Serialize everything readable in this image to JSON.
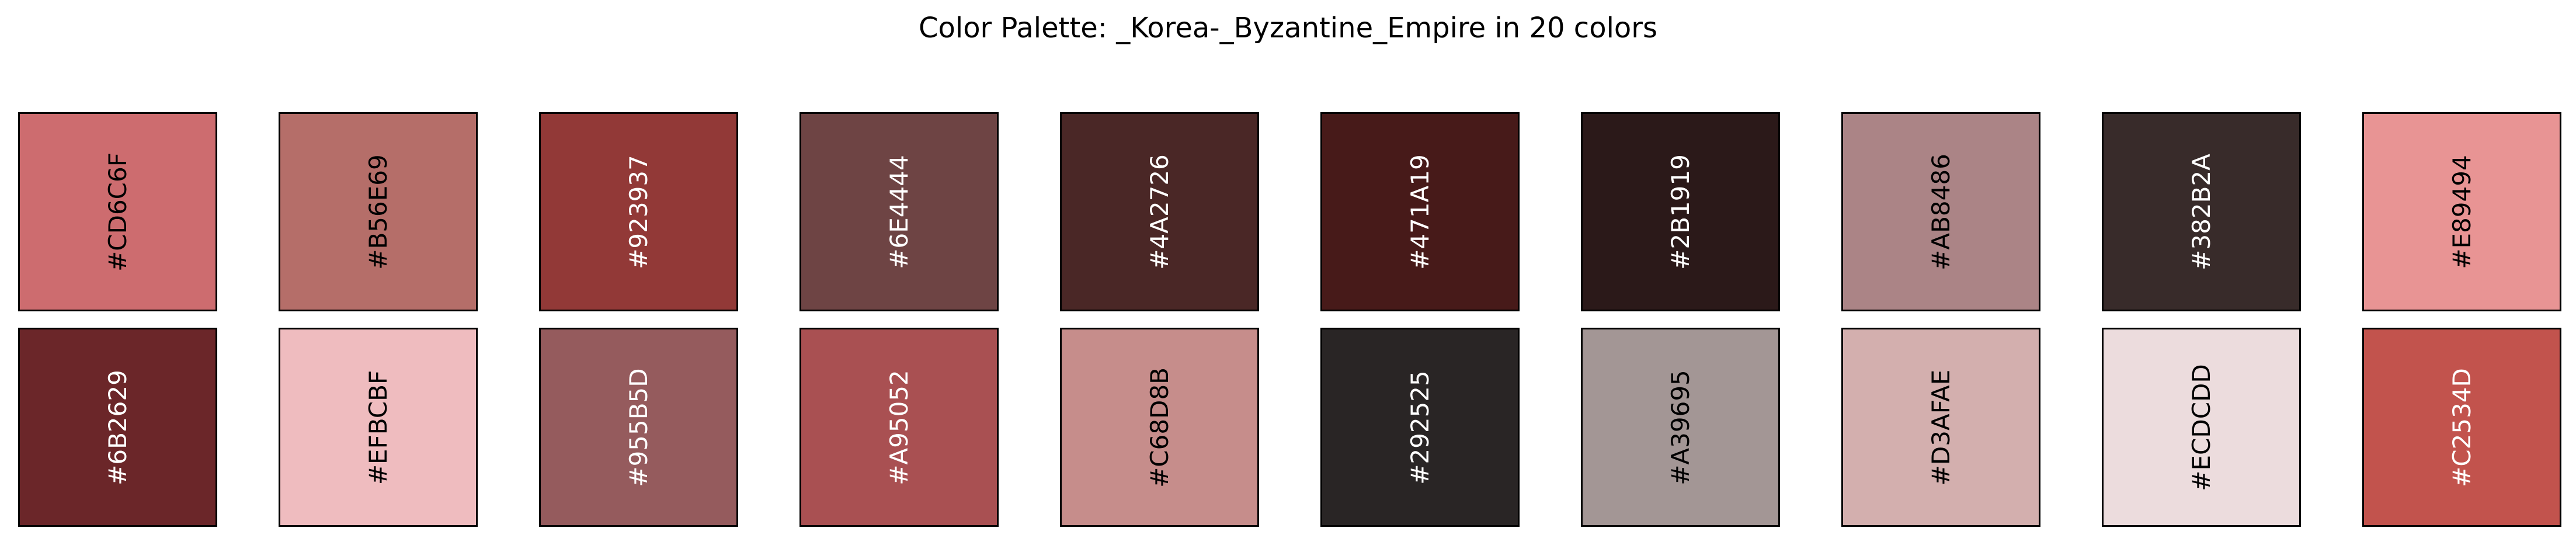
{
  "title": "Color Palette: _Korea-_Byzantine_Empire in 20 colors",
  "chart_data": {
    "type": "palette",
    "title": "Color Palette: _Korea-_Byzantine_Empire in 20 colors",
    "rows": 2,
    "columns": 10,
    "colors": [
      {
        "hex": "#CD6C6F",
        "label": "#CD6C6F",
        "text_color": "#000000"
      },
      {
        "hex": "#B56E69",
        "label": "#B56E69",
        "text_color": "#000000"
      },
      {
        "hex": "#923937",
        "label": "#923937",
        "text_color": "#ffffff"
      },
      {
        "hex": "#6E4444",
        "label": "#6E4444",
        "text_color": "#ffffff"
      },
      {
        "hex": "#4A2726",
        "label": "#4A2726",
        "text_color": "#ffffff"
      },
      {
        "hex": "#471A19",
        "label": "#471A19",
        "text_color": "#ffffff"
      },
      {
        "hex": "#2B1919",
        "label": "#2B1919",
        "text_color": "#ffffff"
      },
      {
        "hex": "#AB8486",
        "label": "#AB8486",
        "text_color": "#000000"
      },
      {
        "hex": "#382B2A",
        "label": "#382B2A",
        "text_color": "#ffffff"
      },
      {
        "hex": "#E89494",
        "label": "#E89494",
        "text_color": "#000000"
      },
      {
        "hex": "#6B2629",
        "label": "#6B2629",
        "text_color": "#ffffff"
      },
      {
        "hex": "#EFBCBF",
        "label": "#EFBCBF",
        "text_color": "#000000"
      },
      {
        "hex": "#955B5D",
        "label": "#955B5D",
        "text_color": "#ffffff"
      },
      {
        "hex": "#A95052",
        "label": "#A95052",
        "text_color": "#ffffff"
      },
      {
        "hex": "#C68D8B",
        "label": "#C68D8B",
        "text_color": "#000000"
      },
      {
        "hex": "#292525",
        "label": "#292525",
        "text_color": "#ffffff"
      },
      {
        "hex": "#A39695",
        "label": "#A39695",
        "text_color": "#000000"
      },
      {
        "hex": "#D3AFAE",
        "label": "#D3AFAE",
        "text_color": "#000000"
      },
      {
        "hex": "#ECDCDD",
        "label": "#ECDCDD",
        "text_color": "#000000"
      },
      {
        "hex": "#C2534D",
        "label": "#C2534D",
        "text_color": "#ffffff"
      }
    ]
  }
}
